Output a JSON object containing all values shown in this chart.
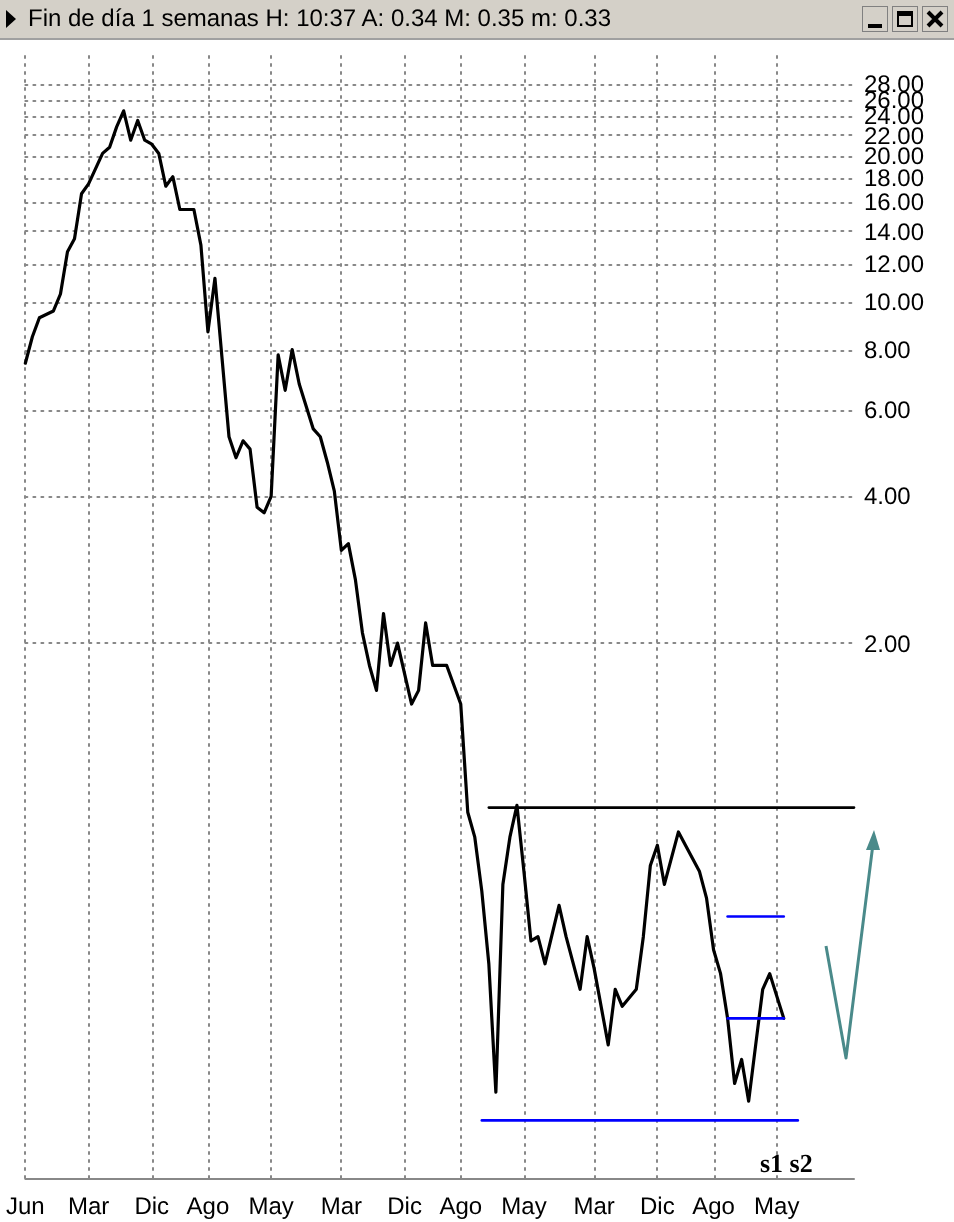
{
  "chart_data": {
    "type": "line",
    "title": "Fin de día 1 semanas  H: 10:37  A: 0.34  M: 0.35  m: 0.33",
    "log": true,
    "grid": true,
    "categories": [
      "Jun",
      null,
      null,
      null,
      null,
      null,
      null,
      null,
      null,
      "Mar",
      null,
      null,
      null,
      null,
      null,
      null,
      null,
      null,
      "Dic",
      null,
      null,
      null,
      null,
      null,
      null,
      null,
      "Ago",
      null,
      null,
      null,
      null,
      null,
      null,
      null,
      null,
      "May",
      null,
      null,
      null,
      null,
      null,
      null,
      null,
      null,
      null,
      "Mar",
      null,
      null,
      null,
      null,
      null,
      null,
      null,
      null,
      "Dic",
      null,
      null,
      null,
      null,
      null,
      null,
      null,
      "Ago",
      null,
      null,
      null,
      null,
      null,
      null,
      null,
      null,
      "May",
      null,
      null,
      null,
      null,
      null,
      null,
      null,
      null,
      null,
      "Mar",
      null,
      null,
      null,
      null,
      null,
      null,
      null,
      null,
      "Dic",
      null,
      null,
      null,
      null,
      null,
      null,
      null,
      "Ago",
      null,
      null,
      null,
      null,
      null,
      null,
      null,
      null,
      "May",
      null,
      null,
      null,
      null,
      null,
      null,
      null,
      null,
      null,
      null,
      null
    ],
    "ylim": [
      0.16,
      32
    ],
    "yticks": [
      {
        "value": 2,
        "label": "2.00"
      },
      {
        "value": 4,
        "label": "4.00"
      },
      {
        "value": 6,
        "label": "6.00"
      },
      {
        "value": 8,
        "label": "8.00"
      },
      {
        "value": 10,
        "label": "10.00"
      },
      {
        "value": 12,
        "label": "12.00"
      },
      {
        "value": 14,
        "label": "14.00"
      },
      {
        "value": 16,
        "label": "16.00"
      },
      {
        "value": 18,
        "label": "18.00"
      },
      {
        "value": 20,
        "label": "20.00"
      },
      {
        "value": 22,
        "label": "22.00"
      },
      {
        "value": 24,
        "label": "24.00"
      },
      {
        "value": 26,
        "label": "26.00"
      },
      {
        "value": 28,
        "label": "28.00"
      }
    ],
    "series": [
      {
        "color": "#000000",
        "values": [
          7.5,
          8.5,
          9.3,
          null,
          9.6,
          10.4,
          12.7,
          13.5,
          16.7,
          17.5,
          null,
          20.2,
          20.8,
          22.9,
          24.7,
          21.5,
          23.6,
          21.5,
          21.1,
          20.2,
          17.3,
          18.1,
          15.5,
          null,
          15.5,
          13.1,
          8.7,
          11.2,
          7.7,
          5.3,
          4.8,
          5.2,
          5.0,
          3.8,
          3.7,
          4.0,
          7.8,
          6.6,
          8.0,
          6.8,
          null,
          5.5,
          5.3,
          4.7,
          4.1,
          3.1,
          3.2,
          2.7,
          2.1,
          1.8,
          1.6,
          2.3,
          1.8,
          2.0,
          null,
          1.5,
          1.6,
          2.2,
          1.8,
          null,
          1.8,
          null,
          1.5,
          0.9,
          0.8,
          0.62,
          0.44,
          0.24,
          0.64,
          0.8,
          0.93,
          0.68,
          0.49,
          0.5,
          0.44,
          null,
          0.58,
          0.5,
          null,
          0.39,
          0.5,
          0.43,
          null,
          0.3,
          0.39,
          0.36,
          null,
          0.39,
          0.5,
          0.7,
          0.77,
          0.64,
          null,
          0.82,
          0.77,
          null,
          0.68,
          0.6,
          0.47,
          0.42,
          0.34,
          0.25,
          0.28,
          0.23,
          0.3,
          0.39,
          0.42,
          null,
          0.34,
          null,
          null,
          null,
          null,
          null,
          null,
          null,
          null,
          null,
          null
        ]
      },
      {
        "color": "#000000",
        "values": [
          null,
          null,
          null,
          null,
          null,
          null,
          null,
          null,
          null,
          null,
          null,
          null,
          null,
          null,
          null,
          null,
          null,
          null,
          null,
          null,
          null,
          null,
          null,
          null,
          null,
          null,
          null,
          null,
          null,
          null,
          null,
          null,
          null,
          null,
          null,
          null,
          null,
          null,
          null,
          null,
          null,
          null,
          null,
          null,
          null,
          null,
          null,
          null,
          null,
          null,
          null,
          null,
          null,
          null,
          null,
          null,
          null,
          null,
          null,
          null,
          null,
          null,
          null,
          null,
          null,
          null,
          0.92,
          0.92,
          0.92,
          0.92,
          0.92,
          0.92,
          0.92,
          0.92,
          0.92,
          0.92,
          0.92,
          0.92,
          0.92,
          0.92,
          0.92,
          0.92,
          0.92,
          0.92,
          0.92,
          0.92,
          0.92,
          0.92,
          0.92,
          0.92,
          0.92,
          0.92,
          0.92,
          0.92,
          0.92,
          0.92,
          0.92,
          0.92,
          0.92,
          0.92,
          0.92,
          0.92,
          0.92,
          0.92,
          0.92,
          0.92,
          0.92,
          0.92,
          0.92,
          0.92,
          0.92,
          0.92,
          0.92,
          0.92,
          0.92,
          0.92,
          0.92,
          0.92,
          0.92
        ]
      },
      {
        "color": "#0000ff",
        "values": [
          null,
          null,
          null,
          null,
          null,
          null,
          null,
          null,
          null,
          null,
          null,
          null,
          null,
          null,
          null,
          null,
          null,
          null,
          null,
          null,
          null,
          null,
          null,
          null,
          null,
          null,
          null,
          null,
          null,
          null,
          null,
          null,
          null,
          null,
          null,
          null,
          null,
          null,
          null,
          null,
          null,
          null,
          null,
          null,
          null,
          null,
          null,
          null,
          null,
          null,
          null,
          null,
          null,
          null,
          null,
          null,
          null,
          null,
          null,
          null,
          null,
          null,
          null,
          null,
          null,
          0.21,
          0.21,
          0.21,
          0.21,
          0.21,
          0.21,
          0.21,
          0.21,
          0.21,
          0.21,
          0.21,
          0.21,
          0.21,
          0.21,
          0.21,
          0.21,
          0.21,
          0.21,
          0.21,
          0.21,
          0.21,
          0.21,
          0.21,
          0.21,
          0.21,
          0.21,
          0.21,
          0.21,
          0.21,
          0.21,
          0.21,
          0.21,
          0.21,
          0.21,
          0.21,
          0.21,
          0.21,
          0.21,
          0.21,
          0.21,
          0.21,
          0.21,
          0.21,
          0.21,
          0.21,
          0.21,
          null,
          null,
          null,
          null,
          null,
          null,
          null,
          null
        ]
      },
      {
        "color": "#0000ff",
        "values": [
          null,
          null,
          null,
          null,
          null,
          null,
          null,
          null,
          null,
          null,
          null,
          null,
          null,
          null,
          null,
          null,
          null,
          null,
          null,
          null,
          null,
          null,
          null,
          null,
          null,
          null,
          null,
          null,
          null,
          null,
          null,
          null,
          null,
          null,
          null,
          null,
          null,
          null,
          null,
          null,
          null,
          null,
          null,
          null,
          null,
          null,
          null,
          null,
          null,
          null,
          null,
          null,
          null,
          null,
          null,
          null,
          null,
          null,
          null,
          null,
          null,
          null,
          null,
          null,
          null,
          null,
          null,
          null,
          null,
          null,
          null,
          null,
          null,
          null,
          null,
          null,
          null,
          null,
          null,
          null,
          null,
          null,
          null,
          null,
          null,
          null,
          null,
          null,
          null,
          null,
          null,
          null,
          null,
          null,
          null,
          null,
          null,
          null,
          null,
          null,
          0.55,
          0.55,
          0.55,
          0.55,
          0.55,
          0.55,
          0.55,
          0.55,
          0.55,
          null,
          null,
          null,
          null,
          null,
          null,
          null,
          null,
          null,
          null
        ]
      },
      {
        "color": "#0000ff",
        "values": [
          null,
          null,
          null,
          null,
          null,
          null,
          null,
          null,
          null,
          null,
          null,
          null,
          null,
          null,
          null,
          null,
          null,
          null,
          null,
          null,
          null,
          null,
          null,
          null,
          null,
          null,
          null,
          null,
          null,
          null,
          null,
          null,
          null,
          null,
          null,
          null,
          null,
          null,
          null,
          null,
          null,
          null,
          null,
          null,
          null,
          null,
          null,
          null,
          null,
          null,
          null,
          null,
          null,
          null,
          null,
          null,
          null,
          null,
          null,
          null,
          null,
          null,
          null,
          null,
          null,
          null,
          null,
          null,
          null,
          null,
          null,
          null,
          null,
          null,
          null,
          null,
          null,
          null,
          null,
          null,
          null,
          null,
          null,
          null,
          null,
          null,
          null,
          null,
          null,
          null,
          null,
          null,
          null,
          null,
          null,
          null,
          null,
          null,
          null,
          null,
          0.34,
          0.34,
          0.34,
          0.34,
          0.34,
          0.34,
          0.34,
          0.34,
          0.34,
          null,
          null,
          null,
          null,
          null,
          null,
          null,
          null,
          null,
          null
        ]
      }
    ],
    "annotations": [
      "s1 s2"
    ]
  }
}
